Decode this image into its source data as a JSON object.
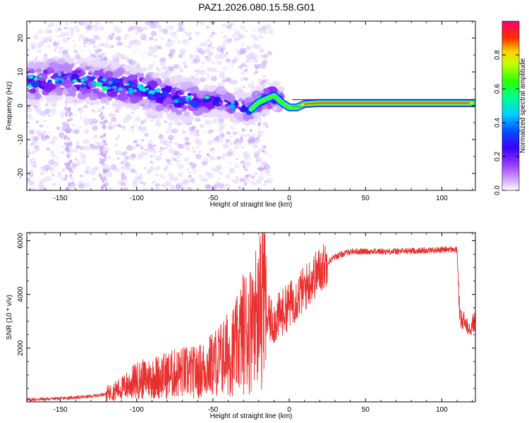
{
  "title": "PAZ1.2026.080.15.58.G01",
  "chart_data": [
    {
      "type": "heatmap",
      "name": "spectrogram",
      "xlabel": "Height of straight line (km)",
      "ylabel": "Frequency (Hz)",
      "xlim": [
        -172,
        122
      ],
      "ylim": [
        -25,
        25
      ],
      "xticks": [
        -150,
        -100,
        -50,
        0,
        50,
        100
      ],
      "yticks": [
        -20,
        -10,
        0,
        10,
        20
      ],
      "ridge": {
        "x": [
          -170,
          -150,
          -130,
          -110,
          -90,
          -70,
          -55,
          -45,
          -38,
          -30,
          -25,
          -20,
          -15,
          -10,
          -5,
          0,
          5,
          10,
          20,
          40,
          60,
          80,
          100,
          118
        ],
        "y": [
          7,
          8,
          7,
          6,
          4,
          2,
          1,
          2,
          0,
          -1,
          -1,
          1,
          2,
          3,
          1,
          -0.5,
          -0.5,
          0.5,
          0.8,
          0.8,
          0.8,
          0.8,
          0.8,
          0.8
        ]
      },
      "colorbar": {
        "label": "Normalized spectral amplitude",
        "range": [
          0,
          1
        ],
        "ticks": [
          0.0,
          0.2,
          0.4,
          0.6,
          0.8
        ]
      }
    },
    {
      "type": "line",
      "name": "snr",
      "xlabel": "Height of straight line (km)",
      "ylabel": "SNR (10 * v/v)",
      "xlim": [
        -172,
        122
      ],
      "ylim": [
        0,
        6300
      ],
      "xticks": [
        -150,
        -100,
        -50,
        0,
        50,
        100
      ],
      "yticks": [
        2000,
        4000,
        6000
      ],
      "color": "#e8302e",
      "x": [
        -172,
        -150,
        -130,
        -120,
        -110,
        -100,
        -90,
        -80,
        -70,
        -60,
        -50,
        -40,
        -35,
        -30,
        -25,
        -22,
        -20,
        -18,
        -15,
        -10,
        -5,
        0,
        5,
        10,
        15,
        20,
        25,
        30,
        35,
        40,
        50,
        60,
        70,
        80,
        90,
        100,
        105,
        110,
        111,
        112,
        115,
        118,
        120,
        122
      ],
      "y": [
        80,
        130,
        200,
        300,
        500,
        800,
        900,
        1000,
        1100,
        1100,
        1400,
        1800,
        2000,
        2600,
        2800,
        3100,
        3400,
        3800,
        3100,
        3000,
        3300,
        3600,
        3900,
        4200,
        4600,
        4900,
        5200,
        5400,
        5500,
        5600,
        5600,
        5600,
        5600,
        5620,
        5640,
        5660,
        5680,
        5650,
        4200,
        3000,
        3000,
        2800,
        2900,
        3000
      ]
    }
  ]
}
